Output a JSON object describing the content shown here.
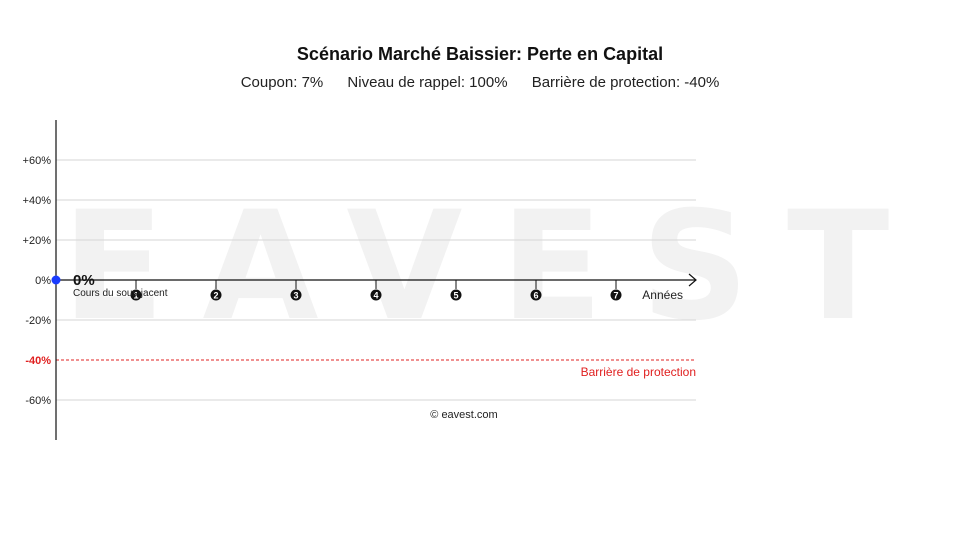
{
  "chart_data": {
    "type": "line",
    "title": "Scénario Marché Baissier: Perte en Capital",
    "subtitle": {
      "coupon": "Coupon: 7%",
      "recall_level": "Niveau de rappel: 100%",
      "barrier": "Barrière de protection: -40%"
    },
    "xlabel": "Années",
    "x_ticks": [
      "1",
      "2",
      "3",
      "4",
      "5",
      "6",
      "7"
    ],
    "xlim": [
      0,
      8
    ],
    "ylim": [
      -80,
      80
    ],
    "y_ticks": [
      60,
      40,
      20,
      0,
      -20,
      -40,
      -60
    ],
    "y_tick_labels": [
      "+60%",
      "+40%",
      "+20%",
      "0%",
      "-20%",
      "-40%",
      "-60%"
    ],
    "gridlines": [
      60,
      40,
      20,
      -20,
      -60
    ],
    "series": [
      {
        "name": "Cours du sous-jacent",
        "points": [
          {
            "x": 0,
            "y": 0
          }
        ],
        "color": "#1a3cff"
      }
    ],
    "start_label": "0%",
    "reference_lines": [
      {
        "value": 0,
        "style": "dotted",
        "color": "#2b3cff"
      },
      {
        "value": -40,
        "label": "Barrière de protection",
        "style": "dashed",
        "color": "#e02020"
      }
    ],
    "grid": true
  },
  "watermark": "EAVEST",
  "copyright": "© eavest.com"
}
